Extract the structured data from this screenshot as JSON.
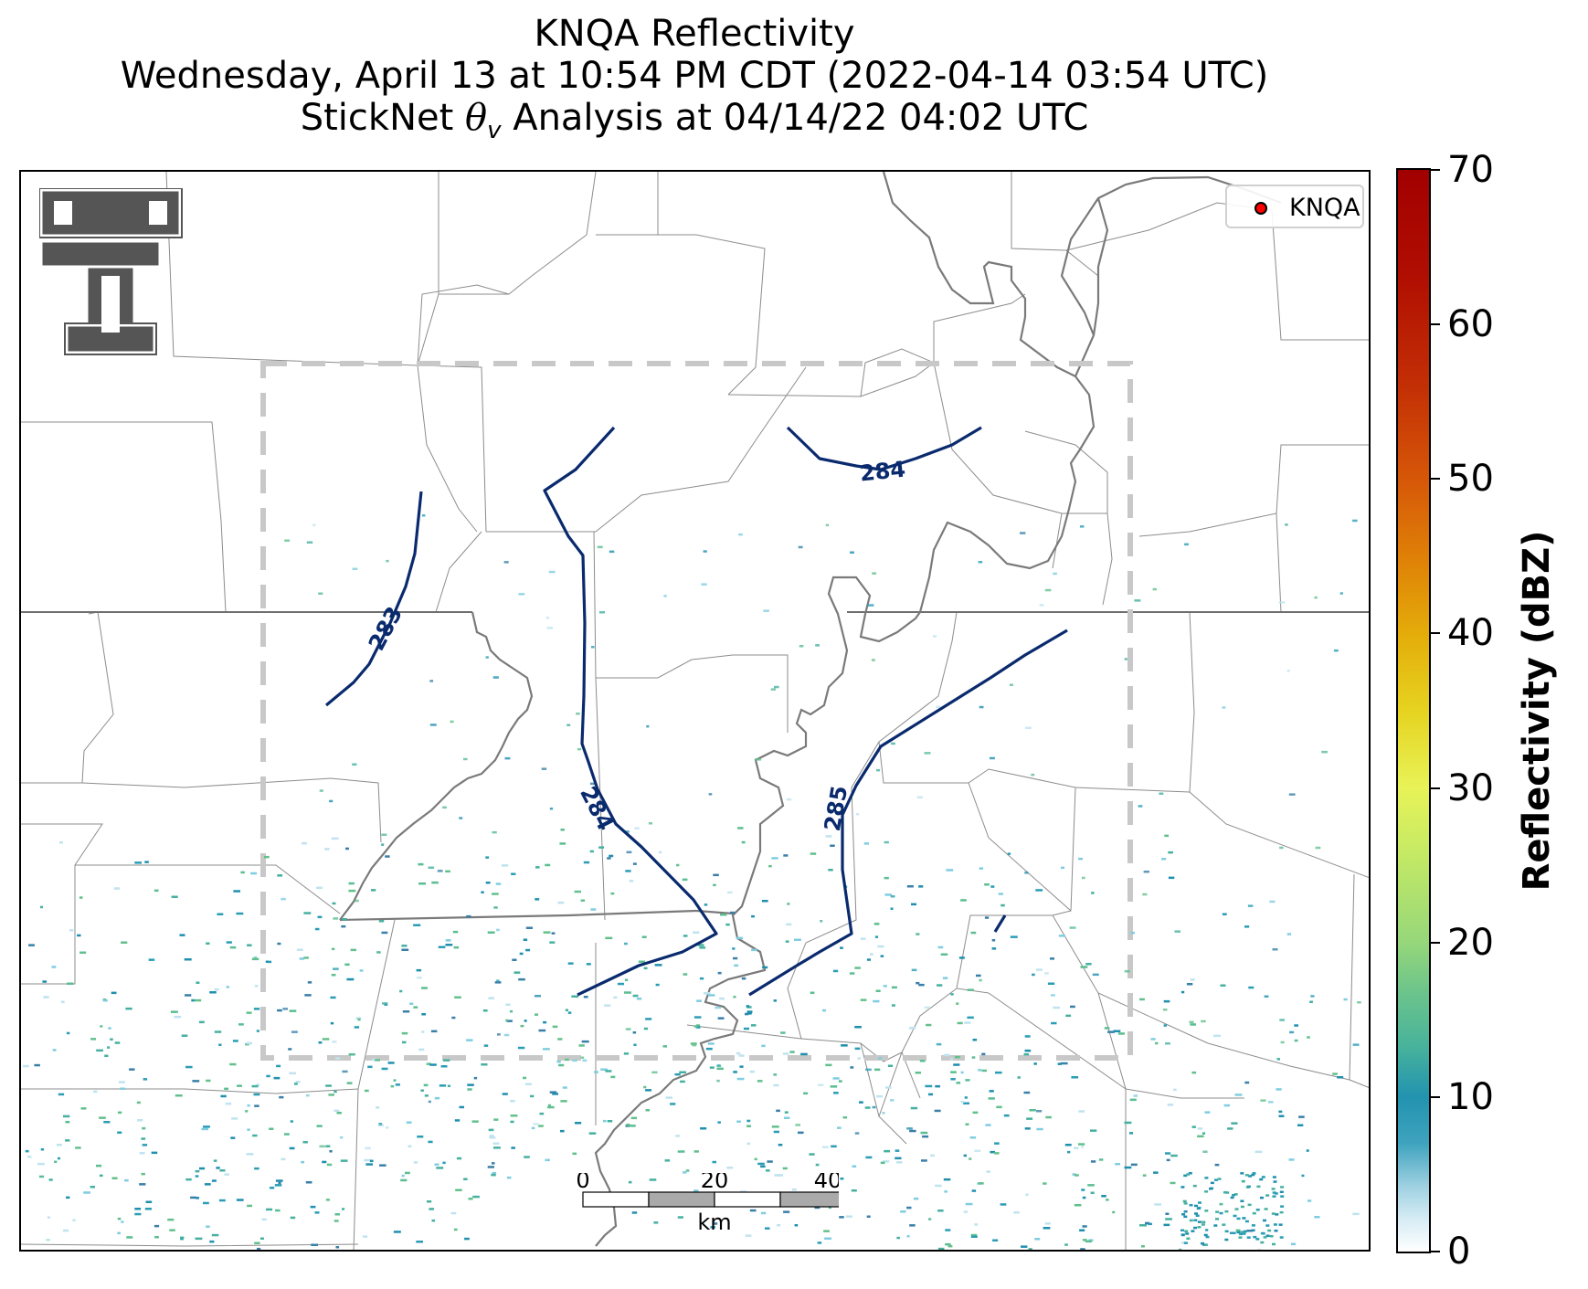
{
  "title": {
    "line1": "KNQA Reflectivity",
    "line2": "Wednesday, April 13 at 10:54 PM CDT (2022-04-14 03:54 UTC)",
    "line3_prefix": "StickNet ",
    "line3_symbol": "θ",
    "line3_subscript": "v",
    "line3_suffix": " Analysis at 04/14/22 04:02 UTC"
  },
  "legend": {
    "label": "KNQA",
    "marker_color": "#ff0000"
  },
  "contours": {
    "color": "#0a2a6e",
    "labels": [
      "283",
      "284",
      "284",
      "285"
    ]
  },
  "scale_bar": {
    "ticks": [
      "0",
      "20",
      "40"
    ],
    "unit": "km"
  },
  "colorbar": {
    "title": "Reflectivity (dBZ)",
    "min": 0,
    "max": 70,
    "ticks": [
      "0",
      "10",
      "20",
      "30",
      "40",
      "50",
      "60",
      "70"
    ]
  },
  "analysis_box": {
    "style": "dashed",
    "color": "#c8c8c8"
  },
  "logo": {
    "name": "texas-tech-double-t-logo"
  }
}
